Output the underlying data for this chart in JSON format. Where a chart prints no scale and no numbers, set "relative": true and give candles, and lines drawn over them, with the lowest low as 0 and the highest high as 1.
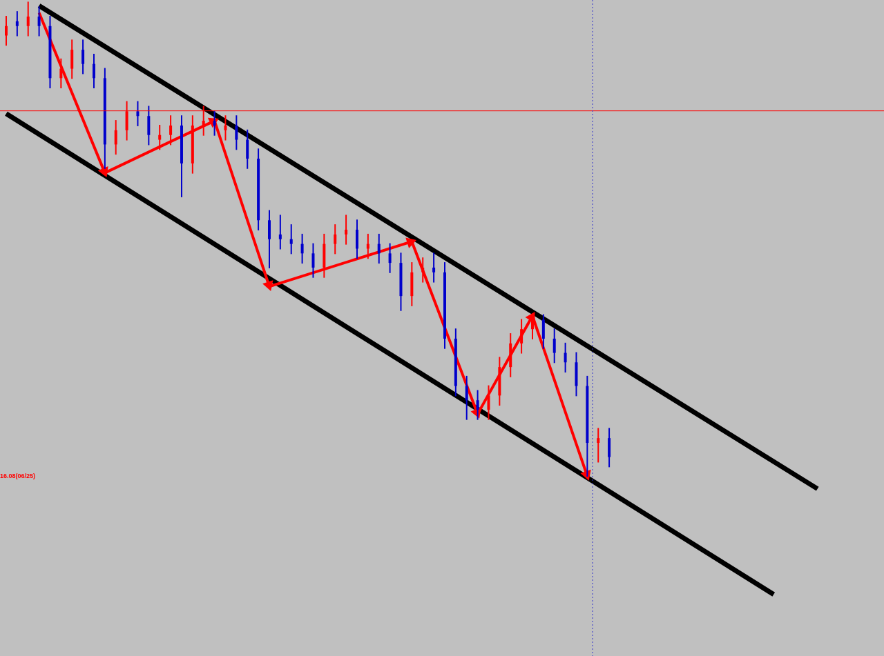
{
  "chart_data": {
    "type": "candlestick",
    "relative": true,
    "categories": [
      null,
      null,
      null,
      null,
      null,
      null,
      null,
      null,
      null,
      null,
      null,
      null,
      null,
      null,
      null,
      null,
      null,
      null,
      null,
      null,
      null,
      null,
      null,
      null,
      null,
      null,
      null,
      null,
      null,
      null,
      null,
      null,
      null,
      null,
      null,
      null,
      null,
      null,
      null,
      null,
      null,
      null,
      null,
      null,
      null,
      null,
      null,
      null,
      null,
      null,
      null,
      null,
      null,
      null,
      null,
      null,
      null,
      null,
      null,
      null,
      null,
      null,
      null,
      null,
      null,
      null,
      null,
      null,
      null,
      null,
      null,
      null,
      null,
      null,
      null
    ],
    "series": [
      {
        "type": "line",
        "color": "#000000",
        "values": [
          null,
          null,
          null,
          0.993,
          null,
          null,
          null,
          null,
          null,
          null,
          null,
          null,
          null,
          null,
          null,
          null,
          null,
          null,
          null,
          null,
          null,
          null,
          null,
          null,
          null,
          null,
          null,
          null,
          null,
          null,
          null,
          null,
          null,
          null,
          null,
          null,
          null,
          null,
          null,
          null,
          null,
          null,
          null,
          null,
          null,
          null,
          null,
          null,
          null,
          null,
          null,
          null,
          null,
          null,
          null,
          null,
          null,
          null,
          null,
          null,
          null,
          null,
          null,
          null,
          null,
          null,
          null,
          null,
          null,
          null,
          null,
          null,
          null,
          null,
          -0.027
        ]
      },
      {
        "type": "line",
        "color": "#000000",
        "values": [
          0.765,
          null,
          null,
          null,
          null,
          null,
          null,
          null,
          null,
          null,
          null,
          null,
          null,
          null,
          null,
          null,
          null,
          null,
          null,
          null,
          null,
          null,
          null,
          null,
          null,
          null,
          null,
          null,
          null,
          null,
          null,
          null,
          null,
          null,
          null,
          null,
          null,
          null,
          null,
          null,
          null,
          null,
          null,
          null,
          null,
          null,
          null,
          null,
          null,
          null,
          null,
          null,
          null,
          null,
          null,
          null,
          null,
          null,
          null,
          null,
          null,
          null,
          null,
          null,
          null,
          null,
          null,
          null,
          null,
          null,
          -0.25,
          null,
          null,
          null,
          null
        ]
      },
      {
        "type": "line",
        "color": "#ff0000",
        "marker": "triangle",
        "values": [
          null,
          null,
          null,
          0.978,
          null,
          null,
          null,
          null,
          null,
          0.64,
          null,
          null,
          null,
          null,
          null,
          null,
          null,
          null,
          null,
          0.75,
          null,
          null,
          null,
          null,
          0.4,
          null,
          null,
          null,
          null,
          null,
          null,
          null,
          null,
          null,
          null,
          null,
          null,
          0.495,
          null,
          null,
          null,
          null,
          null,
          0.131,
          null,
          null,
          null,
          null,
          0.338,
          null,
          null,
          null,
          null,
          0.0,
          null,
          null,
          null,
          null,
          null,
          null,
          null,
          null,
          null,
          null,
          null,
          null,
          null,
          null,
          null,
          null,
          null,
          null,
          null,
          null,
          null
        ]
      }
    ],
    "ohlc": [
      [
        0.93,
        0.97,
        0.91,
        0.95
      ],
      [
        0.96,
        0.98,
        0.93,
        0.95
      ],
      [
        0.95,
        1.0,
        0.93,
        0.97
      ],
      [
        0.97,
        0.99,
        0.93,
        0.95
      ],
      [
        0.95,
        0.97,
        0.82,
        0.84
      ],
      [
        0.84,
        0.88,
        0.82,
        0.86
      ],
      [
        0.86,
        0.92,
        0.84,
        0.9
      ],
      [
        0.9,
        0.92,
        0.85,
        0.87
      ],
      [
        0.87,
        0.89,
        0.82,
        0.84
      ],
      [
        0.84,
        0.86,
        0.65,
        0.7
      ],
      [
        0.7,
        0.75,
        0.68,
        0.73
      ],
      [
        0.73,
        0.79,
        0.71,
        0.77
      ],
      [
        0.77,
        0.79,
        0.74,
        0.76
      ],
      [
        0.76,
        0.78,
        0.7,
        0.72
      ],
      [
        0.71,
        0.74,
        0.69,
        0.72
      ],
      [
        0.72,
        0.76,
        0.7,
        0.74
      ],
      [
        0.74,
        0.76,
        0.59,
        0.66
      ],
      [
        0.66,
        0.76,
        0.64,
        0.74
      ],
      [
        0.74,
        0.78,
        0.72,
        0.75
      ],
      [
        0.75,
        0.77,
        0.72,
        0.74
      ],
      [
        0.73,
        0.76,
        0.71,
        0.74
      ],
      [
        0.74,
        0.76,
        0.69,
        0.71
      ],
      [
        0.71,
        0.73,
        0.65,
        0.67
      ],
      [
        0.67,
        0.69,
        0.52,
        0.54
      ],
      [
        0.54,
        0.56,
        0.44,
        0.5
      ],
      [
        0.51,
        0.55,
        0.48,
        0.5
      ],
      [
        0.5,
        0.53,
        0.47,
        0.49
      ],
      [
        0.49,
        0.51,
        0.45,
        0.47
      ],
      [
        0.47,
        0.49,
        0.42,
        0.44
      ],
      [
        0.44,
        0.51,
        0.42,
        0.49
      ],
      [
        0.49,
        0.53,
        0.47,
        0.51
      ],
      [
        0.51,
        0.55,
        0.49,
        0.52
      ],
      [
        0.52,
        0.54,
        0.46,
        0.48
      ],
      [
        0.48,
        0.51,
        0.46,
        0.49
      ],
      [
        0.49,
        0.51,
        0.45,
        0.47
      ],
      [
        0.47,
        0.49,
        0.43,
        0.45
      ],
      [
        0.45,
        0.47,
        0.35,
        0.38
      ],
      [
        0.38,
        0.45,
        0.36,
        0.43
      ],
      [
        0.43,
        0.46,
        0.41,
        0.44
      ],
      [
        0.44,
        0.47,
        0.41,
        0.43
      ],
      [
        0.43,
        0.45,
        0.27,
        0.29
      ],
      [
        0.29,
        0.31,
        0.17,
        0.19
      ],
      [
        0.19,
        0.21,
        0.12,
        0.16
      ],
      [
        0.16,
        0.18,
        0.12,
        0.14
      ],
      [
        0.14,
        0.19,
        0.12,
        0.17
      ],
      [
        0.17,
        0.25,
        0.15,
        0.23
      ],
      [
        0.23,
        0.3,
        0.21,
        0.28
      ],
      [
        0.28,
        0.33,
        0.26,
        0.31
      ],
      [
        0.31,
        0.34,
        0.29,
        0.33
      ],
      [
        0.33,
        0.34,
        0.27,
        0.29
      ],
      [
        0.29,
        0.31,
        0.24,
        0.26
      ],
      [
        0.26,
        0.28,
        0.22,
        0.24
      ],
      [
        0.24,
        0.26,
        0.17,
        0.19
      ],
      [
        0.19,
        0.21,
        0.0,
        0.07
      ],
      [
        0.07,
        0.1,
        0.03,
        0.08
      ],
      [
        0.08,
        0.1,
        0.02,
        0.04
      ],
      null,
      null,
      null,
      null,
      null,
      null,
      null,
      null,
      null,
      null,
      null,
      null,
      null,
      null,
      null,
      null,
      null,
      null,
      null
    ],
    "colors": [
      "#ff0000",
      "#0000cc",
      "#ff0000",
      "#0000cc",
      "#0000cc",
      "#ff0000",
      "#ff0000",
      "#0000cc",
      "#0000cc",
      "#0000cc",
      "#ff0000",
      "#ff0000",
      "#0000cc",
      "#0000cc",
      "#ff0000",
      "#ff0000",
      "#0000cc",
      "#ff0000",
      "#ff0000",
      "#0000cc",
      "#ff0000",
      "#0000cc",
      "#0000cc",
      "#0000cc",
      "#0000cc",
      "#0000cc",
      "#0000cc",
      "#0000cc",
      "#0000cc",
      "#ff0000",
      "#ff0000",
      "#ff0000",
      "#0000cc",
      "#ff0000",
      "#0000cc",
      "#0000cc",
      "#0000cc",
      "#ff0000",
      "#ff0000",
      "#0000cc",
      "#0000cc",
      "#0000cc",
      "#0000cc",
      "#0000cc",
      "#ff0000",
      "#ff0000",
      "#ff0000",
      "#ff0000",
      "#ff0000",
      "#0000cc",
      "#0000cc",
      "#0000cc",
      "#0000cc",
      "#0000cc",
      "#ff0000",
      "#0000cc",
      null,
      null,
      null,
      null,
      null,
      null,
      null,
      null,
      null,
      null,
      null,
      null,
      null,
      null,
      null,
      null,
      null,
      null,
      null
    ],
    "ref_lines": [
      {
        "axis": "y",
        "value": 0.771,
        "color": "#ff0000"
      }
    ],
    "annotations": [
      "16.08(06/25)"
    ]
  }
}
